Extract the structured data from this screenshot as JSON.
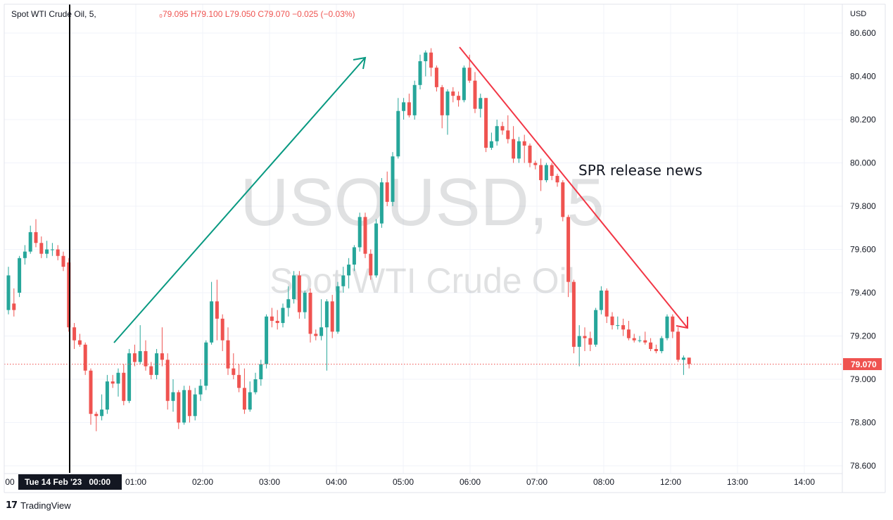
{
  "header": {
    "symbol": "Spot WTI Crude Oil, 5,",
    "ohlc": "₀79.095  H79.100  L79.050  C79.070  −0.025 (−0.03%)"
  },
  "watermark": {
    "ticker": "USOUSD, 5",
    "name": "Spot WTI Crude Oil"
  },
  "price_axis": {
    "currency": "USD",
    "last_price_label": "79.070"
  },
  "crosshair_label": "Tue 14 Feb '23   00:00",
  "footer": {
    "brand": "TradingView"
  },
  "colors": {
    "up": "#26a69a",
    "down": "#ef5350",
    "up_arrow": "#089981",
    "down_arrow": "#f23645",
    "last_price": "#ef5350"
  },
  "chart_data": {
    "type": "candlestick",
    "title": "Spot WTI Crude Oil, 5",
    "ylim": [
      78.55,
      80.72
    ],
    "y_ticks": [
      80.6,
      80.4,
      80.2,
      80.0,
      79.8,
      79.6,
      79.4,
      79.2,
      79.0,
      78.8,
      78.6
    ],
    "x_ticks": [
      "00",
      "01:00",
      "02:00",
      "03:00",
      "04:00",
      "05:00",
      "06:00",
      "07:00",
      "08:00",
      "12:00",
      "13:00",
      "14:00"
    ],
    "last_price": 79.07,
    "annotations": [
      {
        "text": "SPR release news"
      }
    ],
    "candles": [
      {
        "o": 79.32,
        "h": 79.52,
        "l": 79.3,
        "c": 79.48
      },
      {
        "o": 79.35,
        "h": 79.42,
        "l": 79.29,
        "c": 79.32
      },
      {
        "o": 79.4,
        "h": 79.57,
        "l": 79.38,
        "c": 79.56
      },
      {
        "o": 79.56,
        "h": 79.62,
        "l": 79.53,
        "c": 79.59
      },
      {
        "o": 79.59,
        "h": 79.71,
        "l": 79.58,
        "c": 79.68
      },
      {
        "o": 79.68,
        "h": 79.74,
        "l": 79.61,
        "c": 79.63
      },
      {
        "o": 79.63,
        "h": 79.66,
        "l": 79.56,
        "c": 79.58
      },
      {
        "o": 79.58,
        "h": 79.64,
        "l": 79.56,
        "c": 79.6
      },
      {
        "o": 79.6,
        "h": 79.63,
        "l": 79.57,
        "c": 79.6
      },
      {
        "o": 79.6,
        "h": 79.62,
        "l": 79.55,
        "c": 79.57
      },
      {
        "o": 79.57,
        "h": 79.59,
        "l": 79.5,
        "c": 79.52
      },
      {
        "o": 79.54,
        "h": 79.56,
        "l": 79.22,
        "c": 79.24
      },
      {
        "o": 79.24,
        "h": 79.26,
        "l": 79.14,
        "c": 79.18
      },
      {
        "o": 79.18,
        "h": 79.21,
        "l": 79.15,
        "c": 79.16
      },
      {
        "o": 79.16,
        "h": 79.17,
        "l": 79.02,
        "c": 79.04
      },
      {
        "o": 79.04,
        "h": 79.05,
        "l": 78.79,
        "c": 78.84
      },
      {
        "o": 78.84,
        "h": 78.85,
        "l": 78.76,
        "c": 78.83
      },
      {
        "o": 78.83,
        "h": 78.93,
        "l": 78.81,
        "c": 78.86
      },
      {
        "o": 78.86,
        "h": 79.02,
        "l": 78.84,
        "c": 78.99
      },
      {
        "o": 78.99,
        "h": 79.02,
        "l": 78.96,
        "c": 78.98
      },
      {
        "o": 78.98,
        "h": 79.05,
        "l": 78.92,
        "c": 79.03
      },
      {
        "o": 79.03,
        "h": 79.07,
        "l": 78.88,
        "c": 78.9
      },
      {
        "o": 78.9,
        "h": 79.14,
        "l": 78.89,
        "c": 79.12
      },
      {
        "o": 79.12,
        "h": 79.16,
        "l": 79.06,
        "c": 79.08
      },
      {
        "o": 79.08,
        "h": 79.25,
        "l": 79.07,
        "c": 79.13
      },
      {
        "o": 79.13,
        "h": 79.18,
        "l": 79.04,
        "c": 79.06
      },
      {
        "o": 79.06,
        "h": 79.08,
        "l": 79.0,
        "c": 79.02
      },
      {
        "o": 79.02,
        "h": 79.14,
        "l": 79.0,
        "c": 79.12
      },
      {
        "o": 79.12,
        "h": 79.24,
        "l": 79.06,
        "c": 79.09
      },
      {
        "o": 79.09,
        "h": 79.12,
        "l": 78.86,
        "c": 78.9
      },
      {
        "o": 78.9,
        "h": 79.0,
        "l": 78.85,
        "c": 78.94
      },
      {
        "o": 78.94,
        "h": 78.95,
        "l": 78.77,
        "c": 78.8
      },
      {
        "o": 78.8,
        "h": 78.97,
        "l": 78.79,
        "c": 78.95
      },
      {
        "o": 78.95,
        "h": 78.97,
        "l": 78.8,
        "c": 78.83
      },
      {
        "o": 78.83,
        "h": 78.96,
        "l": 78.81,
        "c": 78.93
      },
      {
        "o": 78.93,
        "h": 79.0,
        "l": 78.9,
        "c": 78.97
      },
      {
        "o": 78.97,
        "h": 79.18,
        "l": 78.95,
        "c": 79.17
      },
      {
        "o": 79.17,
        "h": 79.45,
        "l": 79.16,
        "c": 79.36
      },
      {
        "o": 79.36,
        "h": 79.46,
        "l": 79.18,
        "c": 79.28
      },
      {
        "o": 79.28,
        "h": 79.3,
        "l": 79.13,
        "c": 79.18
      },
      {
        "o": 79.18,
        "h": 79.24,
        "l": 79.02,
        "c": 79.05
      },
      {
        "o": 79.05,
        "h": 79.12,
        "l": 79.0,
        "c": 79.02
      },
      {
        "o": 79.02,
        "h": 79.07,
        "l": 78.94,
        "c": 78.96
      },
      {
        "o": 78.96,
        "h": 79.05,
        "l": 78.84,
        "c": 78.86
      },
      {
        "o": 78.86,
        "h": 78.99,
        "l": 78.85,
        "c": 78.94
      },
      {
        "o": 78.94,
        "h": 79.03,
        "l": 78.93,
        "c": 79.0
      },
      {
        "o": 79.0,
        "h": 79.09,
        "l": 78.97,
        "c": 79.07
      },
      {
        "o": 79.07,
        "h": 79.3,
        "l": 79.05,
        "c": 79.29
      },
      {
        "o": 79.29,
        "h": 79.33,
        "l": 79.24,
        "c": 79.27
      },
      {
        "o": 79.27,
        "h": 79.32,
        "l": 79.23,
        "c": 79.26
      },
      {
        "o": 79.26,
        "h": 79.35,
        "l": 79.24,
        "c": 79.33
      },
      {
        "o": 79.33,
        "h": 79.43,
        "l": 79.29,
        "c": 79.37
      },
      {
        "o": 79.37,
        "h": 79.5,
        "l": 79.35,
        "c": 79.48
      },
      {
        "o": 79.48,
        "h": 79.5,
        "l": 79.28,
        "c": 79.31
      },
      {
        "o": 79.31,
        "h": 79.41,
        "l": 79.28,
        "c": 79.4
      },
      {
        "o": 79.4,
        "h": 79.42,
        "l": 79.17,
        "c": 79.21
      },
      {
        "o": 79.21,
        "h": 79.23,
        "l": 79.18,
        "c": 79.2
      },
      {
        "o": 79.2,
        "h": 79.37,
        "l": 79.18,
        "c": 79.24
      },
      {
        "o": 79.24,
        "h": 79.37,
        "l": 79.04,
        "c": 79.36
      },
      {
        "o": 79.36,
        "h": 79.39,
        "l": 79.19,
        "c": 79.22
      },
      {
        "o": 79.22,
        "h": 79.45,
        "l": 79.21,
        "c": 79.43
      },
      {
        "o": 79.43,
        "h": 79.52,
        "l": 79.4,
        "c": 79.48
      },
      {
        "o": 79.48,
        "h": 79.56,
        "l": 79.42,
        "c": 79.53
      },
      {
        "o": 79.53,
        "h": 79.62,
        "l": 79.5,
        "c": 79.61
      },
      {
        "o": 79.61,
        "h": 79.77,
        "l": 79.59,
        "c": 79.75
      },
      {
        "o": 79.75,
        "h": 79.77,
        "l": 79.56,
        "c": 79.58
      },
      {
        "o": 79.58,
        "h": 79.6,
        "l": 79.46,
        "c": 79.48
      },
      {
        "o": 79.48,
        "h": 79.74,
        "l": 79.47,
        "c": 79.72
      },
      {
        "o": 79.72,
        "h": 79.93,
        "l": 79.7,
        "c": 79.91
      },
      {
        "o": 79.91,
        "h": 79.96,
        "l": 79.8,
        "c": 79.82
      },
      {
        "o": 79.82,
        "h": 80.05,
        "l": 79.8,
        "c": 80.03
      },
      {
        "o": 80.03,
        "h": 80.3,
        "l": 80.02,
        "c": 80.24
      },
      {
        "o": 80.24,
        "h": 80.3,
        "l": 80.2,
        "c": 80.28
      },
      {
        "o": 80.28,
        "h": 80.32,
        "l": 80.21,
        "c": 80.22
      },
      {
        "o": 80.22,
        "h": 80.38,
        "l": 80.2,
        "c": 80.36
      },
      {
        "o": 80.36,
        "h": 80.5,
        "l": 80.34,
        "c": 80.47
      },
      {
        "o": 80.47,
        "h": 80.52,
        "l": 80.4,
        "c": 80.51
      },
      {
        "o": 80.51,
        "h": 80.53,
        "l": 80.4,
        "c": 80.44
      },
      {
        "o": 80.44,
        "h": 80.45,
        "l": 80.33,
        "c": 80.35
      },
      {
        "o": 80.35,
        "h": 80.36,
        "l": 80.16,
        "c": 80.22
      },
      {
        "o": 80.22,
        "h": 80.34,
        "l": 80.13,
        "c": 80.33
      },
      {
        "o": 80.33,
        "h": 80.35,
        "l": 80.28,
        "c": 80.31
      },
      {
        "o": 80.31,
        "h": 80.33,
        "l": 80.26,
        "c": 80.29
      },
      {
        "o": 80.29,
        "h": 80.45,
        "l": 80.28,
        "c": 80.44
      },
      {
        "o": 80.44,
        "h": 80.5,
        "l": 80.37,
        "c": 80.38
      },
      {
        "o": 80.38,
        "h": 80.42,
        "l": 80.23,
        "c": 80.25
      },
      {
        "o": 80.25,
        "h": 80.32,
        "l": 80.21,
        "c": 80.3
      },
      {
        "o": 80.3,
        "h": 80.3,
        "l": 80.05,
        "c": 80.07
      },
      {
        "o": 80.07,
        "h": 80.14,
        "l": 80.06,
        "c": 80.1
      },
      {
        "o": 80.1,
        "h": 80.2,
        "l": 80.08,
        "c": 80.17
      },
      {
        "o": 80.17,
        "h": 80.19,
        "l": 80.13,
        "c": 80.15
      },
      {
        "o": 80.15,
        "h": 80.22,
        "l": 80.09,
        "c": 80.11
      },
      {
        "o": 80.11,
        "h": 80.17,
        "l": 80.0,
        "c": 80.02
      },
      {
        "o": 80.02,
        "h": 80.12,
        "l": 80.0,
        "c": 80.1
      },
      {
        "o": 80.1,
        "h": 80.13,
        "l": 80.0,
        "c": 80.08
      },
      {
        "o": 80.08,
        "h": 80.09,
        "l": 79.98,
        "c": 80.0
      },
      {
        "o": 80.0,
        "h": 80.01,
        "l": 79.97,
        "c": 79.99
      },
      {
        "o": 79.99,
        "h": 80.02,
        "l": 79.87,
        "c": 79.92
      },
      {
        "o": 79.92,
        "h": 80.0,
        "l": 79.91,
        "c": 79.99
      },
      {
        "o": 79.99,
        "h": 80.0,
        "l": 79.92,
        "c": 79.94
      },
      {
        "o": 79.94,
        "h": 79.95,
        "l": 79.89,
        "c": 79.91
      },
      {
        "o": 79.91,
        "h": 79.92,
        "l": 79.73,
        "c": 79.75
      },
      {
        "o": 79.75,
        "h": 79.76,
        "l": 79.38,
        "c": 79.45
      },
      {
        "o": 79.45,
        "h": 79.46,
        "l": 79.12,
        "c": 79.15
      },
      {
        "o": 79.15,
        "h": 79.25,
        "l": 79.06,
        "c": 79.2
      },
      {
        "o": 79.2,
        "h": 79.24,
        "l": 79.13,
        "c": 79.19
      },
      {
        "o": 79.19,
        "h": 79.22,
        "l": 79.13,
        "c": 79.16
      },
      {
        "o": 79.16,
        "h": 79.33,
        "l": 79.15,
        "c": 79.32
      },
      {
        "o": 79.32,
        "h": 79.43,
        "l": 79.3,
        "c": 79.41
      },
      {
        "o": 79.41,
        "h": 79.42,
        "l": 79.26,
        "c": 79.29
      },
      {
        "o": 79.29,
        "h": 79.31,
        "l": 79.23,
        "c": 79.25
      },
      {
        "o": 79.25,
        "h": 79.29,
        "l": 79.23,
        "c": 79.25
      },
      {
        "o": 79.25,
        "h": 79.28,
        "l": 79.2,
        "c": 79.23
      },
      {
        "o": 79.23,
        "h": 79.27,
        "l": 79.18,
        "c": 79.19
      },
      {
        "o": 79.19,
        "h": 79.21,
        "l": 79.17,
        "c": 79.18
      },
      {
        "o": 79.18,
        "h": 79.2,
        "l": 79.17,
        "c": 79.18
      },
      {
        "o": 79.18,
        "h": 79.22,
        "l": 79.16,
        "c": 79.17
      },
      {
        "o": 79.17,
        "h": 79.19,
        "l": 79.13,
        "c": 79.14
      },
      {
        "o": 79.14,
        "h": 79.16,
        "l": 79.12,
        "c": 79.13
      },
      {
        "o": 79.13,
        "h": 79.2,
        "l": 79.12,
        "c": 79.19
      },
      {
        "o": 79.19,
        "h": 79.3,
        "l": 79.18,
        "c": 79.29
      },
      {
        "o": 79.29,
        "h": 79.3,
        "l": 79.19,
        "c": 79.22
      },
      {
        "o": 79.22,
        "h": 79.24,
        "l": 79.08,
        "c": 79.09
      },
      {
        "o": 79.09,
        "h": 79.11,
        "l": 79.02,
        "c": 79.1
      },
      {
        "o": 79.1,
        "h": 79.1,
        "l": 79.05,
        "c": 79.07
      }
    ]
  }
}
